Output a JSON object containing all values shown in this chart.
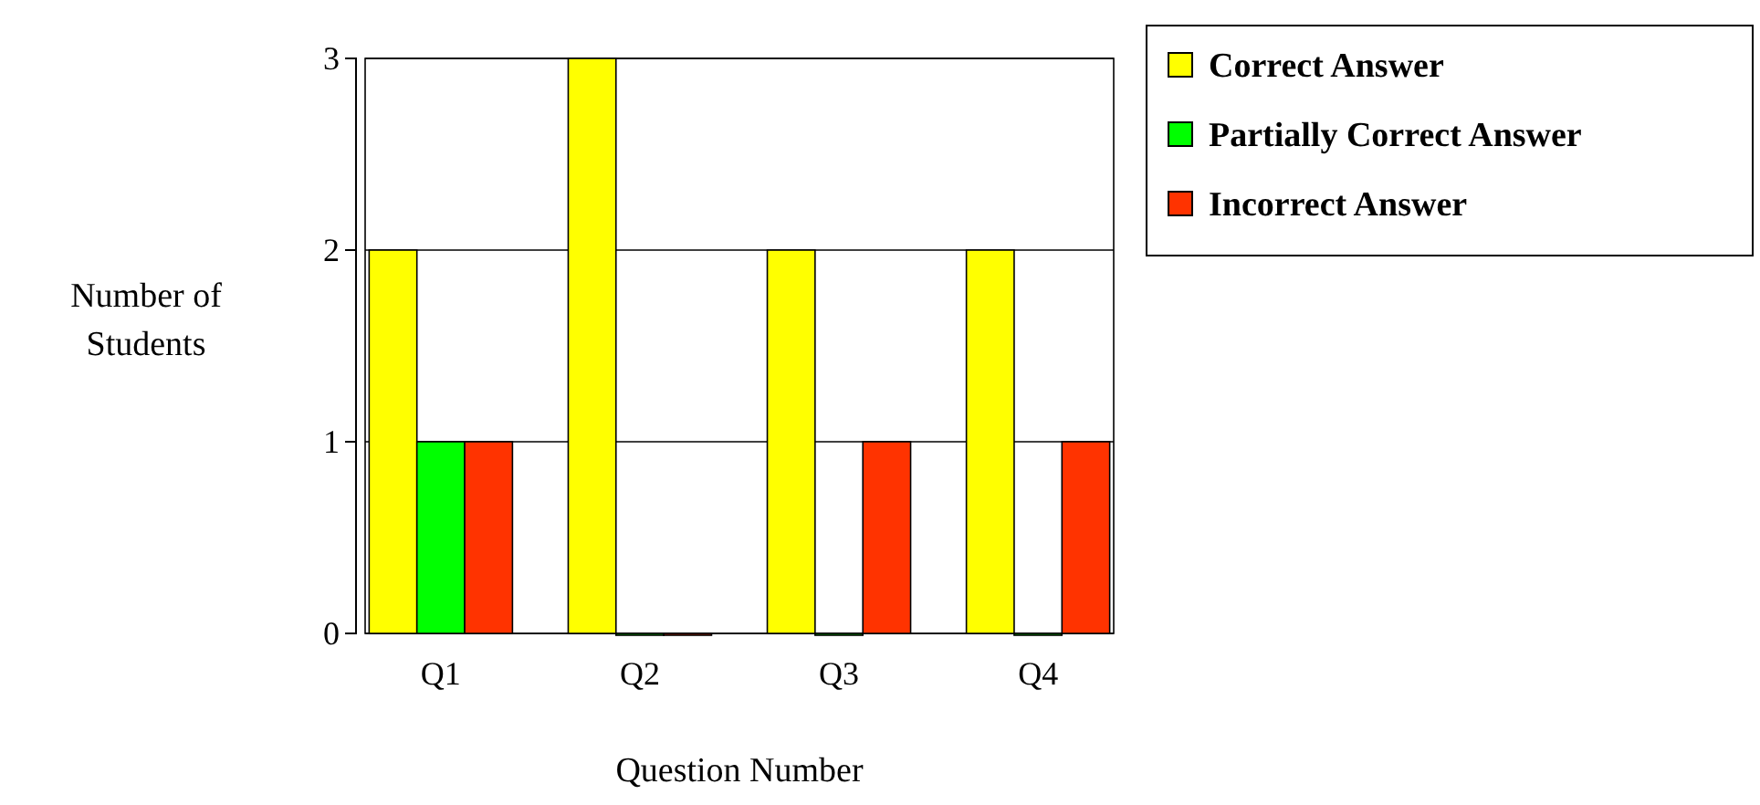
{
  "chart_data": {
    "type": "bar",
    "xlabel": "Question Number",
    "ylabel": "Number of Students",
    "categories": [
      "Q1",
      "Q2",
      "Q3",
      "Q4"
    ],
    "series": [
      {
        "name": "Correct Answer",
        "color": "#ffff00",
        "values": [
          2,
          3,
          2,
          2
        ]
      },
      {
        "name": "Partially Correct Answer",
        "color": "#00ff00",
        "values": [
          1,
          0,
          0,
          0
        ]
      },
      {
        "name": "Incorrect Answer",
        "color": "#ff3300",
        "values": [
          1,
          0,
          1,
          1
        ]
      }
    ],
    "ylim": [
      0,
      3
    ],
    "yticks": [
      0,
      1,
      2,
      3
    ],
    "grid": "y",
    "legend": "top right"
  }
}
